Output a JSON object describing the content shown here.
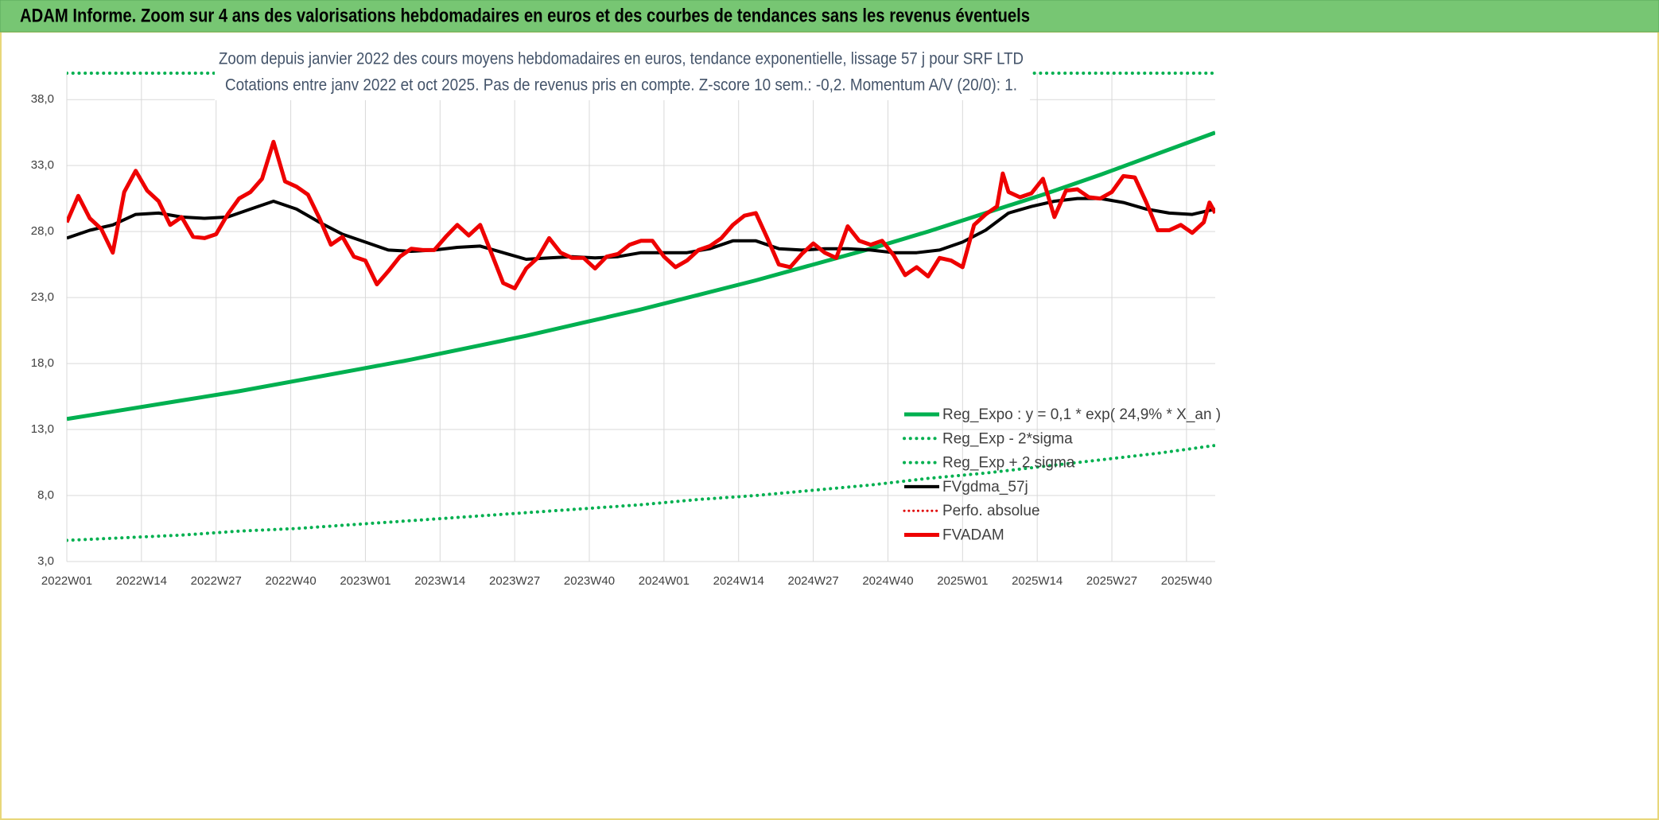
{
  "chart_data": {
    "type": "line",
    "title": "ADAM Informe. Zoom sur 4 ans des valorisations hebdomadaires en euros et des courbes de tendances sans les revenus éventuels",
    "subtitle": [
      "Zoom depuis janvier 2022 des cours moyens hebdomadaires en euros, tendance exponentielle, lissage 57 j pour SRF LTD",
      "Cotations entre janv 2022 et oct 2025. Pas de revenus pris en compte. Z-score 10 sem.: -0,2. Momentum A/V (20/0): 1."
    ],
    "xlim": [
      0,
      200
    ],
    "xticks": [
      {
        "value": 0,
        "label": "2022W01"
      },
      {
        "value": 13,
        "label": "2022W14"
      },
      {
        "value": 26,
        "label": "2022W27"
      },
      {
        "value": 39,
        "label": "2022W40"
      },
      {
        "value": 52,
        "label": "2023W01"
      },
      {
        "value": 65,
        "label": "2023W14"
      },
      {
        "value": 78,
        "label": "2023W27"
      },
      {
        "value": 91,
        "label": "2023W40"
      },
      {
        "value": 104,
        "label": "2024W01"
      },
      {
        "value": 117,
        "label": "2024W14"
      },
      {
        "value": 130,
        "label": "2024W27"
      },
      {
        "value": 143,
        "label": "2024W40"
      },
      {
        "value": 156,
        "label": "2025W01"
      },
      {
        "value": 169,
        "label": "2025W14"
      },
      {
        "value": 182,
        "label": "2025W27"
      },
      {
        "value": 195,
        "label": "2025W40"
      }
    ],
    "ylim": [
      3,
      40
    ],
    "yticks": [
      {
        "value": 3,
        "label": "3,0"
      },
      {
        "value": 8,
        "label": "8,0"
      },
      {
        "value": 13,
        "label": "13,0"
      },
      {
        "value": 18,
        "label": "18,0"
      },
      {
        "value": 23,
        "label": "23,0"
      },
      {
        "value": 28,
        "label": "28,0"
      },
      {
        "value": 33,
        "label": "33,0"
      },
      {
        "value": 38,
        "label": "38,0"
      }
    ],
    "grid": true,
    "legend": "lower right",
    "series": [
      {
        "name": "Reg_Expo : y = 0,1 * exp( 24,9% *  X_an )",
        "color": "#00b050",
        "style": "solid",
        "width": 5,
        "x": [
          0,
          10,
          20,
          30,
          40,
          50,
          60,
          70,
          80,
          90,
          100,
          110,
          120,
          130,
          140,
          150,
          160,
          170,
          180,
          190,
          200
        ],
        "values": [
          13.8,
          14.5,
          15.2,
          15.9,
          16.7,
          17.5,
          18.3,
          19.2,
          20.1,
          21.1,
          22.1,
          23.2,
          24.3,
          25.5,
          26.7,
          28.0,
          29.4,
          30.8,
          32.3,
          33.9,
          35.5
        ]
      },
      {
        "name": "Reg_Exp - 2*sigma",
        "color": "#00b050",
        "style": "dot",
        "width": 4,
        "x": [
          0,
          10,
          20,
          30,
          40,
          50,
          60,
          70,
          80,
          90,
          100,
          110,
          120,
          130,
          140,
          150,
          160,
          170,
          180,
          190,
          200
        ],
        "values": [
          4.6,
          4.8,
          5.0,
          5.3,
          5.5,
          5.8,
          6.1,
          6.4,
          6.7,
          7.0,
          7.3,
          7.7,
          8.0,
          8.4,
          8.8,
          9.3,
          9.7,
          10.2,
          10.7,
          11.2,
          11.8
        ]
      },
      {
        "name": "Reg_Exp + 2 sigma",
        "color": "#00b050",
        "style": "dot",
        "width": 4,
        "x": [
          0,
          200
        ],
        "values": [
          40,
          40
        ]
      },
      {
        "name": "FVgdma_57j",
        "color": "#000000",
        "style": "solid",
        "width": 4,
        "x": [
          0,
          4,
          8,
          12,
          16,
          20,
          24,
          28,
          32,
          36,
          40,
          44,
          48,
          52,
          56,
          60,
          64,
          68,
          72,
          76,
          80,
          84,
          88,
          92,
          96,
          100,
          104,
          108,
          112,
          116,
          120,
          124,
          128,
          132,
          136,
          140,
          144,
          148,
          152,
          156,
          160,
          164,
          168,
          172,
          176,
          180,
          184,
          188,
          192,
          196,
          200
        ],
        "values": [
          27.5,
          28.1,
          28.5,
          29.3,
          29.4,
          29.1,
          29.0,
          29.1,
          29.7,
          30.3,
          29.7,
          28.7,
          27.8,
          27.2,
          26.6,
          26.5,
          26.6,
          26.8,
          26.9,
          26.4,
          25.9,
          26.0,
          26.1,
          26.0,
          26.1,
          26.4,
          26.4,
          26.4,
          26.7,
          27.3,
          27.3,
          26.7,
          26.6,
          26.7,
          26.7,
          26.6,
          26.4,
          26.4,
          26.6,
          27.2,
          28.1,
          29.4,
          29.9,
          30.3,
          30.5,
          30.5,
          30.2,
          29.7,
          29.4,
          29.3,
          29.7
        ]
      },
      {
        "name": "Perfo. absolue",
        "color": "#e00000",
        "style": "dot",
        "width": 3
      },
      {
        "name": "FVADAM",
        "color": "#ee0000",
        "style": "solid",
        "width": 5,
        "x": [
          0,
          2,
          4,
          6,
          8,
          10,
          12,
          14,
          16,
          18,
          20,
          22,
          24,
          26,
          28,
          30,
          32,
          34,
          36,
          38,
          40,
          42,
          44,
          46,
          48,
          50,
          52,
          54,
          56,
          58,
          60,
          62,
          64,
          66,
          68,
          70,
          72,
          74,
          76,
          78,
          80,
          82,
          84,
          86,
          88,
          90,
          92,
          94,
          96,
          98,
          100,
          102,
          104,
          106,
          108,
          110,
          112,
          114,
          116,
          118,
          120,
          122,
          124,
          126,
          128,
          130,
          132,
          134,
          136,
          138,
          140,
          142,
          144,
          146,
          148,
          150,
          152,
          154,
          156,
          158,
          160,
          162,
          163,
          164,
          166,
          168,
          170,
          172,
          174,
          176,
          178,
          180,
          182,
          184,
          186,
          188,
          190,
          192,
          194,
          196,
          198,
          199,
          200
        ],
        "values": [
          28.7,
          30.7,
          29.0,
          28.2,
          26.4,
          31.0,
          32.6,
          31.1,
          30.3,
          28.5,
          29.1,
          27.6,
          27.5,
          27.8,
          29.3,
          30.5,
          31.0,
          32.0,
          34.8,
          31.8,
          31.4,
          30.8,
          29.0,
          27.0,
          27.6,
          26.1,
          25.8,
          24.0,
          25.0,
          26.1,
          26.7,
          26.6,
          26.6,
          27.6,
          28.5,
          27.7,
          28.5,
          26.3,
          24.1,
          23.7,
          25.2,
          26.0,
          27.5,
          26.4,
          26.0,
          26.0,
          25.2,
          26.1,
          26.3,
          27.0,
          27.3,
          27.3,
          26.1,
          25.3,
          25.8,
          26.6,
          26.9,
          27.5,
          28.5,
          29.2,
          29.4,
          27.5,
          25.5,
          25.3,
          26.3,
          27.1,
          26.4,
          26.0,
          28.4,
          27.3,
          27.0,
          27.3,
          26.2,
          24.7,
          25.3,
          24.6,
          26.0,
          25.8,
          25.3,
          28.5,
          29.3,
          29.9,
          32.4,
          31.0,
          30.6,
          30.9,
          32.0,
          29.1,
          31.1,
          31.2,
          30.6,
          30.5,
          31.0,
          32.2,
          32.1,
          30.2,
          28.1,
          28.1,
          28.5,
          27.9,
          28.7,
          30.2,
          29.4
        ]
      }
    ]
  }
}
